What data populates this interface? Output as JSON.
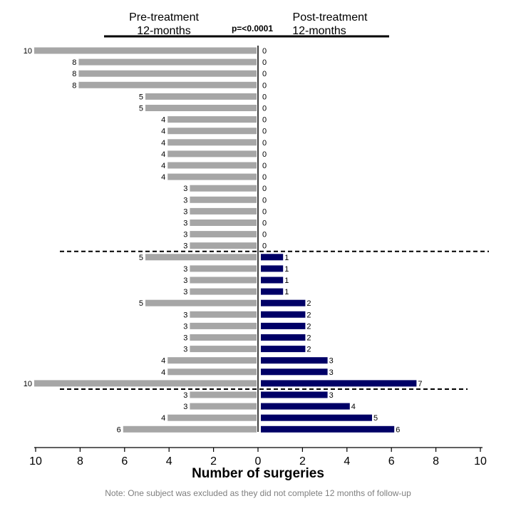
{
  "chart_data": {
    "type": "bar",
    "orientation": "horizontal-butterfly",
    "xlabel": "Number of surgeries",
    "xticks": [
      "10",
      "8",
      "6",
      "4",
      "2",
      "0",
      "2",
      "4",
      "6",
      "8",
      "10"
    ],
    "xlim": [
      0,
      10
    ],
    "headers": {
      "pre_line1": "Pre-treatment",
      "pre_line2": "12-months",
      "post_line1": "Post-treatment",
      "post_line2": "12-months",
      "p_value": "p=<0.0001"
    },
    "series": [
      {
        "name": "Pre-treatment 12-months",
        "color": "#a6a6a6",
        "values": [
          10,
          8,
          8,
          8,
          5,
          5,
          4,
          4,
          4,
          4,
          4,
          4,
          3,
          3,
          3,
          3,
          3,
          3,
          5,
          3,
          3,
          3,
          5,
          3,
          3,
          3,
          3,
          4,
          4,
          10,
          3,
          3,
          4,
          6
        ]
      },
      {
        "name": "Post-treatment 12-months",
        "color": "#000066",
        "values": [
          0,
          0,
          0,
          0,
          0,
          0,
          0,
          0,
          0,
          0,
          0,
          0,
          0,
          0,
          0,
          0,
          0,
          0,
          1,
          1,
          1,
          1,
          2,
          2,
          2,
          2,
          2,
          3,
          3,
          7,
          3,
          4,
          5,
          6
        ]
      }
    ],
    "group_dividers_after_row": [
      17,
      29
    ],
    "note": "Note: One subject was excluded as they did not complete 12 months of follow-up"
  }
}
